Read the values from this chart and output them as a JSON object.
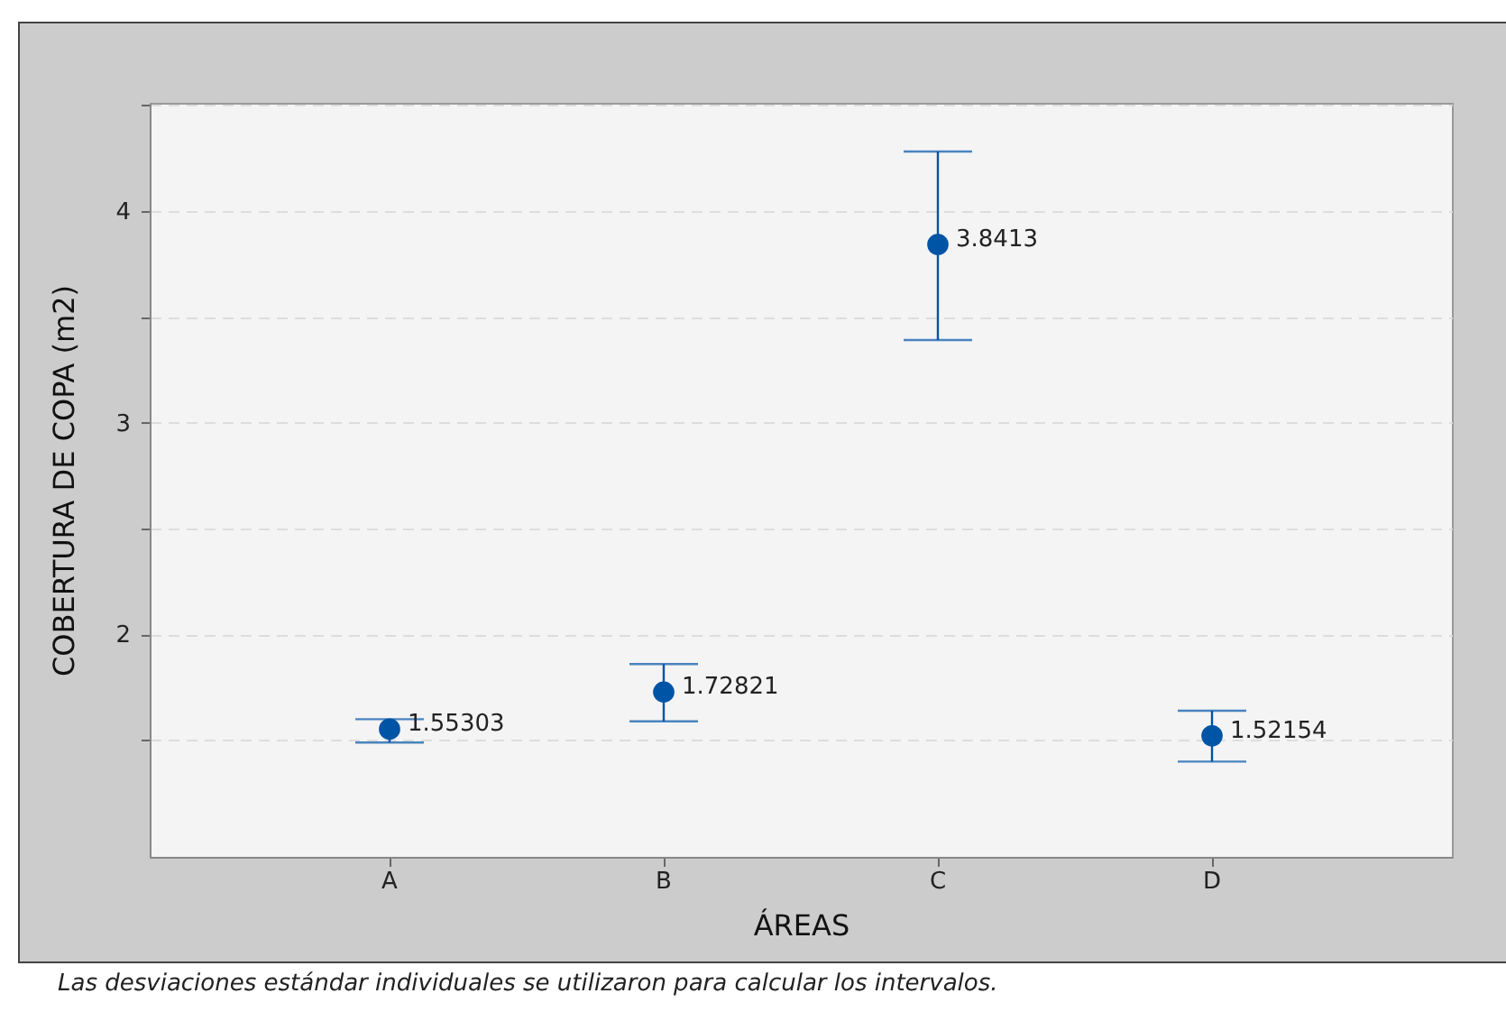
{
  "chart_data": {
    "type": "scatter",
    "xlabel": "ÁREAS",
    "ylabel": "COBERTURA DE COPA (m2)",
    "categories": [
      "A",
      "B",
      "C",
      "D"
    ],
    "values": [
      1.55303,
      1.72821,
      3.8413,
      1.52154
    ],
    "errors": [
      [
        1.49,
        1.6
      ],
      [
        1.59,
        1.86
      ],
      [
        3.39,
        4.28
      ],
      [
        1.4,
        1.64
      ]
    ],
    "color": "#0054a6",
    "marker": "circle",
    "data_labels": true,
    "grid": "y",
    "ylim": [
      0.95,
      4.51
    ],
    "yticks": [
      {
        "value": 1.5,
        "label": null
      },
      2,
      {
        "value": 2.5,
        "label": null
      },
      3,
      {
        "value": 3.5,
        "label": null
      },
      4,
      {
        "value": 4.5,
        "label": null
      }
    ],
    "annotations": [
      "Las desviaciones estándar individuales se utilizaron para calcular los intervalos."
    ]
  }
}
